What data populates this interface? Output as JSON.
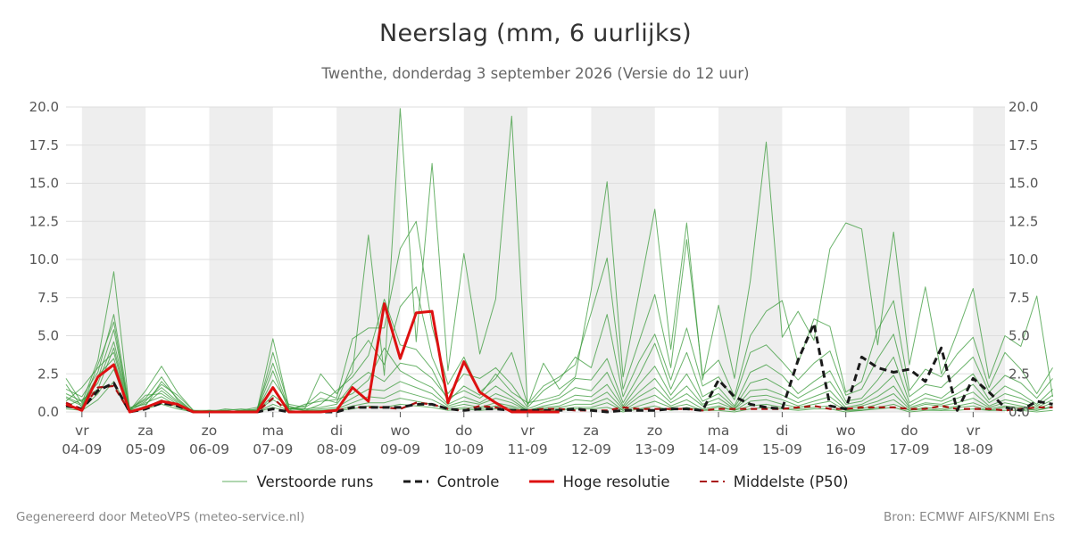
{
  "title": "Neerslag (mm, 6 uurlijks)",
  "subtitle": "Twenthe, donderdag  3 september 2026 (Versie do 12 uur)",
  "footer": {
    "left": "Gegenereerd door MeteoVPS (meteo-service.nl)",
    "right": "Bron: ECMWF AIFS/KNMI Ens"
  },
  "legend": {
    "ensemble": "Verstoorde runs",
    "control": "Controle",
    "hires": "Hoge resolutie",
    "median": "Middelste (P50)"
  },
  "colors": {
    "ensemble": "#3a9a3a",
    "control": "#1a1a1a",
    "hires": "#dd1111",
    "median": "#aa1111",
    "shade": "#eeeeee"
  },
  "chart_data": {
    "type": "line",
    "ylim": [
      0,
      20
    ],
    "yticks": [
      "0.0",
      "2.5",
      "5.0",
      "7.5",
      "10.0",
      "12.5",
      "15.0",
      "17.5",
      "20.0"
    ],
    "x_range": [
      "2026-09-03T18:00",
      "2026-09-18T12:00"
    ],
    "time_step_hours": 6,
    "day_ticks": [
      {
        "day": "vr",
        "date": "04-09"
      },
      {
        "day": "za",
        "date": "05-09"
      },
      {
        "day": "zo",
        "date": "06-09"
      },
      {
        "day": "ma",
        "date": "07-09"
      },
      {
        "day": "di",
        "date": "08-09"
      },
      {
        "day": "wo",
        "date": "09-09"
      },
      {
        "day": "do",
        "date": "10-09"
      },
      {
        "day": "vr",
        "date": "11-09"
      },
      {
        "day": "za",
        "date": "12-09"
      },
      {
        "day": "zo",
        "date": "13-09"
      },
      {
        "day": "ma",
        "date": "14-09"
      },
      {
        "day": "di",
        "date": "15-09"
      },
      {
        "day": "wo",
        "date": "16-09"
      },
      {
        "day": "do",
        "date": "17-09"
      },
      {
        "day": "vr",
        "date": "18-09"
      }
    ],
    "shaded_days": [
      "04-09",
      "06-09",
      "08-09",
      "10-09",
      "12-09",
      "14-09",
      "16-09",
      "18-09"
    ],
    "series": [
      {
        "name": "Hoge resolutie",
        "values": [
          0.5,
          0.1,
          2.3,
          3.1,
          0.0,
          0.3,
          0.7,
          0.5,
          0.0,
          0.0,
          0.0,
          0.0,
          0.0,
          1.6,
          0.0,
          0.0,
          0.0,
          0.1,
          1.6,
          0.7,
          7.1,
          3.5,
          6.5,
          6.6,
          0.6,
          3.3,
          1.3,
          0.6,
          0.0,
          0.0,
          0.0,
          0.0
        ]
      },
      {
        "name": "Controle",
        "values": [
          0.4,
          0.2,
          1.4,
          1.9,
          0.0,
          0.2,
          0.6,
          0.4,
          0.0,
          0.0,
          0.0,
          0.0,
          0.0,
          0.2,
          0.0,
          0.0,
          0.0,
          0.0,
          0.3,
          0.3,
          0.3,
          0.3,
          0.5,
          0.5,
          0.2,
          0.1,
          0.2,
          0.2,
          0.1,
          0.1,
          0.1,
          0.1,
          0.2,
          0.1,
          0.0,
          0.1,
          0.1,
          0.1,
          0.2,
          0.2,
          0.1,
          2.1,
          1.0,
          0.5,
          0.3,
          0.2,
          3.4,
          5.8,
          0.4,
          0.2,
          3.6,
          2.9,
          2.6,
          2.8,
          2.0,
          4.2,
          0.1,
          2.2,
          1.3,
          0.3,
          0.1,
          0.7,
          0.5
        ]
      },
      {
        "name": "Middelste (P50)",
        "values": [
          0.6,
          0.2,
          1.6,
          1.7,
          0.0,
          0.3,
          0.6,
          0.4,
          0.0,
          0.0,
          0.0,
          0.0,
          0.0,
          0.9,
          0.0,
          0.0,
          0.0,
          0.1,
          0.3,
          0.3,
          0.3,
          0.2,
          0.6,
          0.5,
          0.2,
          0.1,
          0.4,
          0.3,
          0.1,
          0.1,
          0.2,
          0.2,
          0.1,
          0.1,
          0.1,
          0.3,
          0.2,
          0.2,
          0.2,
          0.2,
          0.1,
          0.2,
          0.2,
          0.2,
          0.2,
          0.2,
          0.3,
          0.4,
          0.2,
          0.2,
          0.3,
          0.3,
          0.3,
          0.2,
          0.2,
          0.4,
          0.2,
          0.2,
          0.2,
          0.1,
          0.2,
          0.3,
          0.3
        ]
      },
      {
        "name": "Verstoorde runs",
        "values": [
          2.2,
          0.6,
          3.4,
          9.2,
          0.1,
          1.4,
          3.0,
          1.3,
          0.1,
          0.0,
          0.2,
          0.1,
          0.1,
          4.8,
          0.3,
          0.2,
          2.5,
          1.2,
          2.6,
          11.6,
          2.4,
          19.9,
          4.6,
          16.3,
          2.7,
          10.4,
          3.8,
          7.4,
          19.4,
          0.4,
          3.2,
          1.5,
          2.3,
          8.0,
          15.1,
          2.3,
          7.8,
          13.3,
          4.1,
          12.4,
          2.1,
          7.0,
          2.2,
          8.6,
          17.7,
          4.9,
          6.6,
          4.7,
          10.7,
          12.4,
          12.0,
          4.4,
          11.8,
          3.1,
          8.2,
          2.5,
          5.2,
          8.1,
          2.2,
          5.0,
          4.3,
          7.6,
          1.0
        ]
      },
      {
        "name": "Verstoorde runs",
        "values": [
          1.5,
          1.0,
          2.6,
          6.4,
          0.2,
          0.9,
          2.3,
          0.8,
          0.0,
          0.1,
          0.0,
          0.0,
          0.2,
          3.2,
          0.2,
          0.4,
          1.3,
          0.9,
          4.8,
          5.5,
          5.5,
          10.7,
          12.5,
          5.6,
          1.8,
          3.6,
          1.3,
          2.2,
          3.9,
          0.5,
          1.7,
          2.3,
          3.1,
          6.5,
          10.1,
          1.5,
          4.6,
          7.7,
          2.9,
          11.3,
          2.4,
          3.4,
          1.0,
          5.0,
          6.6,
          7.3,
          3.2,
          6.1,
          5.6,
          1.3,
          2.0,
          5.4,
          7.3,
          1.4,
          2.8,
          2.3,
          3.8,
          4.9,
          1.6,
          3.9,
          2.8,
          1.2,
          2.9
        ]
      },
      {
        "name": "Verstoorde runs",
        "values": [
          0.9,
          0.4,
          2.2,
          5.4,
          0.1,
          0.7,
          1.8,
          1.1,
          0.1,
          0.1,
          0.1,
          0.2,
          0.1,
          2.1,
          0.5,
          0.3,
          0.9,
          0.6,
          3.2,
          4.7,
          3.1,
          6.9,
          8.2,
          3.6,
          1.2,
          2.5,
          2.2,
          2.9,
          1.8,
          0.3,
          1.4,
          2.1,
          3.6,
          2.9,
          6.4,
          1.0,
          3.3,
          5.1,
          2.1,
          5.5,
          1.7,
          2.3,
          0.8,
          3.9,
          4.4,
          3.3,
          2.1,
          3.2,
          4.0,
          1.1,
          1.5,
          3.5,
          5.1,
          1.0,
          1.8,
          1.6,
          2.6,
          3.6,
          1.3,
          2.4,
          1.9,
          0.9,
          2.2
        ]
      },
      {
        "name": "Verstoorde runs",
        "values": [
          1.2,
          0.7,
          1.9,
          4.6,
          0.3,
          0.5,
          1.4,
          0.6,
          0.0,
          0.0,
          0.1,
          0.0,
          0.0,
          3.9,
          0.4,
          0.1,
          0.5,
          1.4,
          2.3,
          3.7,
          7.4,
          4.4,
          4.1,
          2.8,
          0.7,
          1.7,
          1.1,
          2.5,
          1.3,
          0.6,
          0.8,
          1.1,
          2.2,
          2.1,
          3.5,
          0.6,
          2.4,
          4.5,
          1.5,
          3.9,
          1.0,
          1.6,
          0.4,
          2.6,
          3.1,
          2.4,
          1.2,
          2.0,
          2.7,
          0.7,
          0.9,
          2.1,
          3.6,
          0.6,
          1.2,
          0.9,
          1.7,
          2.5,
          0.8,
          1.7,
          1.2,
          0.5,
          1.5
        ]
      },
      {
        "name": "Verstoorde runs",
        "values": [
          0.7,
          1.6,
          2.9,
          3.9,
          0.1,
          1.1,
          1.2,
          0.5,
          0.1,
          0.0,
          0.0,
          0.1,
          0.3,
          1.5,
          0.2,
          0.2,
          0.3,
          0.5,
          1.8,
          2.6,
          2.0,
          3.2,
          3.0,
          2.2,
          0.9,
          1.4,
          0.9,
          1.7,
          1.0,
          0.2,
          0.6,
          0.9,
          1.6,
          1.4,
          2.6,
          0.4,
          1.8,
          3.0,
          1.1,
          2.5,
          0.7,
          1.2,
          0.3,
          1.9,
          2.2,
          1.6,
          0.9,
          1.5,
          2.0,
          0.5,
          0.7,
          1.4,
          2.4,
          0.4,
          0.9,
          0.7,
          1.2,
          1.8,
          0.6,
          1.2,
          0.9,
          0.4,
          1.1
        ]
      },
      {
        "name": "Verstoorde runs",
        "values": [
          1.8,
          0.3,
          3.1,
          5.9,
          0.0,
          0.4,
          2.0,
          0.9,
          0.0,
          0.1,
          0.0,
          0.1,
          0.1,
          2.7,
          0.1,
          0.5,
          0.7,
          0.8,
          1.2,
          2.1,
          4.2,
          2.7,
          2.1,
          1.6,
          0.5,
          1.0,
          0.6,
          1.2,
          0.8,
          0.1,
          0.4,
          0.6,
          1.1,
          1.0,
          1.8,
          0.3,
          1.3,
          2.2,
          0.8,
          1.7,
          0.5,
          0.9,
          0.2,
          1.4,
          1.5,
          1.1,
          0.6,
          1.0,
          1.4,
          0.3,
          0.5,
          1.0,
          1.7,
          0.3,
          0.6,
          0.5,
          0.9,
          1.3,
          0.4,
          0.8,
          0.6,
          0.3,
          0.8
        ]
      },
      {
        "name": "Verstoorde runs",
        "values": [
          0.4,
          0.8,
          1.5,
          4.2,
          0.2,
          0.8,
          1.6,
          0.7,
          0.0,
          0.0,
          0.1,
          0.0,
          0.0,
          1.1,
          0.3,
          0.1,
          0.2,
          0.3,
          0.9,
          1.5,
          1.4,
          2.0,
          1.6,
          1.2,
          0.4,
          0.7,
          0.5,
          0.9,
          0.6,
          0.1,
          0.3,
          0.4,
          0.8,
          0.7,
          1.3,
          0.2,
          1.0,
          1.6,
          0.6,
          1.2,
          0.4,
          0.6,
          0.2,
          1.0,
          1.1,
          0.8,
          0.4,
          0.7,
          1.0,
          0.2,
          0.4,
          0.7,
          1.2,
          0.2,
          0.5,
          0.4,
          0.6,
          0.9,
          0.3,
          0.6,
          0.4,
          0.2,
          0.6
        ]
      },
      {
        "name": "Verstoorde runs",
        "values": [
          1.0,
          0.5,
          2.4,
          3.5,
          0.1,
          0.6,
          1.0,
          0.4,
          0.0,
          0.0,
          0.0,
          0.0,
          0.1,
          0.8,
          0.2,
          0.1,
          0.1,
          0.2,
          0.6,
          1.0,
          0.9,
          1.4,
          1.1,
          0.8,
          0.3,
          0.5,
          0.3,
          0.6,
          0.4,
          0.1,
          0.2,
          0.3,
          0.5,
          0.5,
          0.9,
          0.1,
          0.7,
          1.1,
          0.4,
          0.8,
          0.2,
          0.4,
          0.1,
          0.7,
          0.8,
          0.5,
          0.3,
          0.5,
          0.7,
          0.1,
          0.2,
          0.5,
          0.8,
          0.1,
          0.3,
          0.2,
          0.4,
          0.6,
          0.2,
          0.4,
          0.3,
          0.1,
          0.4
        ]
      },
      {
        "name": "Verstoorde runs",
        "values": [
          0.3,
          0.2,
          1.2,
          2.8,
          0.0,
          0.3,
          0.8,
          0.3,
          0.0,
          0.0,
          0.0,
          0.0,
          0.0,
          0.5,
          0.1,
          0.0,
          0.1,
          0.1,
          0.4,
          0.6,
          0.6,
          0.9,
          0.7,
          0.5,
          0.2,
          0.3,
          0.2,
          0.4,
          0.3,
          0.0,
          0.1,
          0.2,
          0.3,
          0.3,
          0.6,
          0.1,
          0.4,
          0.7,
          0.3,
          0.5,
          0.1,
          0.3,
          0.1,
          0.4,
          0.5,
          0.3,
          0.2,
          0.3,
          0.4,
          0.1,
          0.1,
          0.3,
          0.5,
          0.1,
          0.2,
          0.1,
          0.3,
          0.4,
          0.1,
          0.3,
          0.2,
          0.1,
          0.3
        ]
      },
      {
        "name": "Verstoorde runs",
        "values": [
          0.2,
          0.1,
          0.8,
          2.0,
          0.0,
          0.2,
          0.5,
          0.2,
          0.0,
          0.0,
          0.0,
          0.0,
          0.0,
          0.3,
          0.0,
          0.0,
          0.0,
          0.1,
          0.2,
          0.4,
          0.3,
          0.5,
          0.4,
          0.3,
          0.1,
          0.2,
          0.1,
          0.2,
          0.2,
          0.0,
          0.1,
          0.1,
          0.2,
          0.2,
          0.3,
          0.0,
          0.2,
          0.4,
          0.1,
          0.3,
          0.1,
          0.1,
          0.0,
          0.2,
          0.3,
          0.2,
          0.1,
          0.2,
          0.2,
          0.0,
          0.1,
          0.2,
          0.3,
          0.0,
          0.1,
          0.1,
          0.1,
          0.2,
          0.1,
          0.1,
          0.1,
          0.0,
          0.1
        ]
      }
    ]
  }
}
